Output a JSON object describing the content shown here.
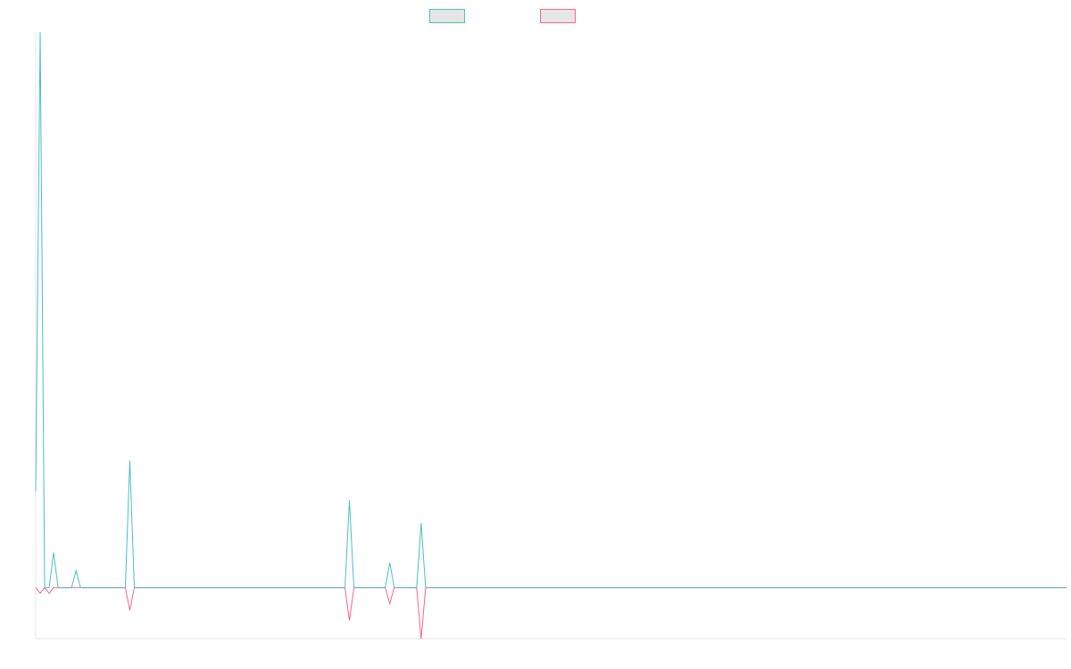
{
  "chart_data": {
    "type": "line",
    "title": "",
    "xlabel": "",
    "ylabel": "",
    "grid": false,
    "legend_position": "top-center",
    "x_count": 231,
    "ylim": [
      -45,
      490
    ],
    "series": [
      {
        "name": "",
        "color": "#4bc0c0",
        "fill": "#e6e6e6",
        "points": [
          [
            0,
            85
          ],
          [
            1,
            490
          ],
          [
            2,
            0
          ],
          [
            3,
            0
          ],
          [
            4,
            31
          ],
          [
            5,
            0
          ],
          [
            6,
            0
          ],
          [
            7,
            0
          ],
          [
            8,
            0
          ],
          [
            9,
            15
          ],
          [
            10,
            0
          ],
          [
            11,
            0
          ],
          [
            12,
            0
          ],
          [
            13,
            0
          ],
          [
            14,
            0
          ],
          [
            15,
            0
          ],
          [
            16,
            0
          ],
          [
            17,
            0
          ],
          [
            18,
            0
          ],
          [
            19,
            0
          ],
          [
            20,
            0
          ],
          [
            21,
            112
          ],
          [
            22,
            0
          ],
          [
            23,
            0
          ],
          [
            69,
            0
          ],
          [
            70,
            77
          ],
          [
            71,
            0
          ],
          [
            72,
            0
          ],
          [
            78,
            0
          ],
          [
            79,
            22
          ],
          [
            80,
            0
          ],
          [
            81,
            0
          ],
          [
            85,
            0
          ],
          [
            86,
            57
          ],
          [
            87,
            0
          ],
          [
            88,
            0
          ],
          [
            230,
            0
          ]
        ]
      },
      {
        "name": "",
        "color": "#ff6384",
        "fill": "#e6e6e6",
        "points": [
          [
            0,
            0
          ],
          [
            1,
            -5
          ],
          [
            2,
            0
          ],
          [
            3,
            -5
          ],
          [
            4,
            0
          ],
          [
            5,
            0
          ],
          [
            6,
            0
          ],
          [
            7,
            0
          ],
          [
            8,
            0
          ],
          [
            9,
            0
          ],
          [
            10,
            0
          ],
          [
            11,
            0
          ],
          [
            12,
            0
          ],
          [
            20,
            0
          ],
          [
            21,
            -20
          ],
          [
            22,
            0
          ],
          [
            23,
            0
          ],
          [
            69,
            0
          ],
          [
            70,
            -29
          ],
          [
            71,
            0
          ],
          [
            72,
            0
          ],
          [
            78,
            0
          ],
          [
            79,
            -14
          ],
          [
            80,
            0
          ],
          [
            81,
            0
          ],
          [
            85,
            0
          ],
          [
            86,
            -45
          ],
          [
            87,
            0
          ],
          [
            88,
            0
          ],
          [
            230,
            0
          ]
        ]
      }
    ]
  }
}
